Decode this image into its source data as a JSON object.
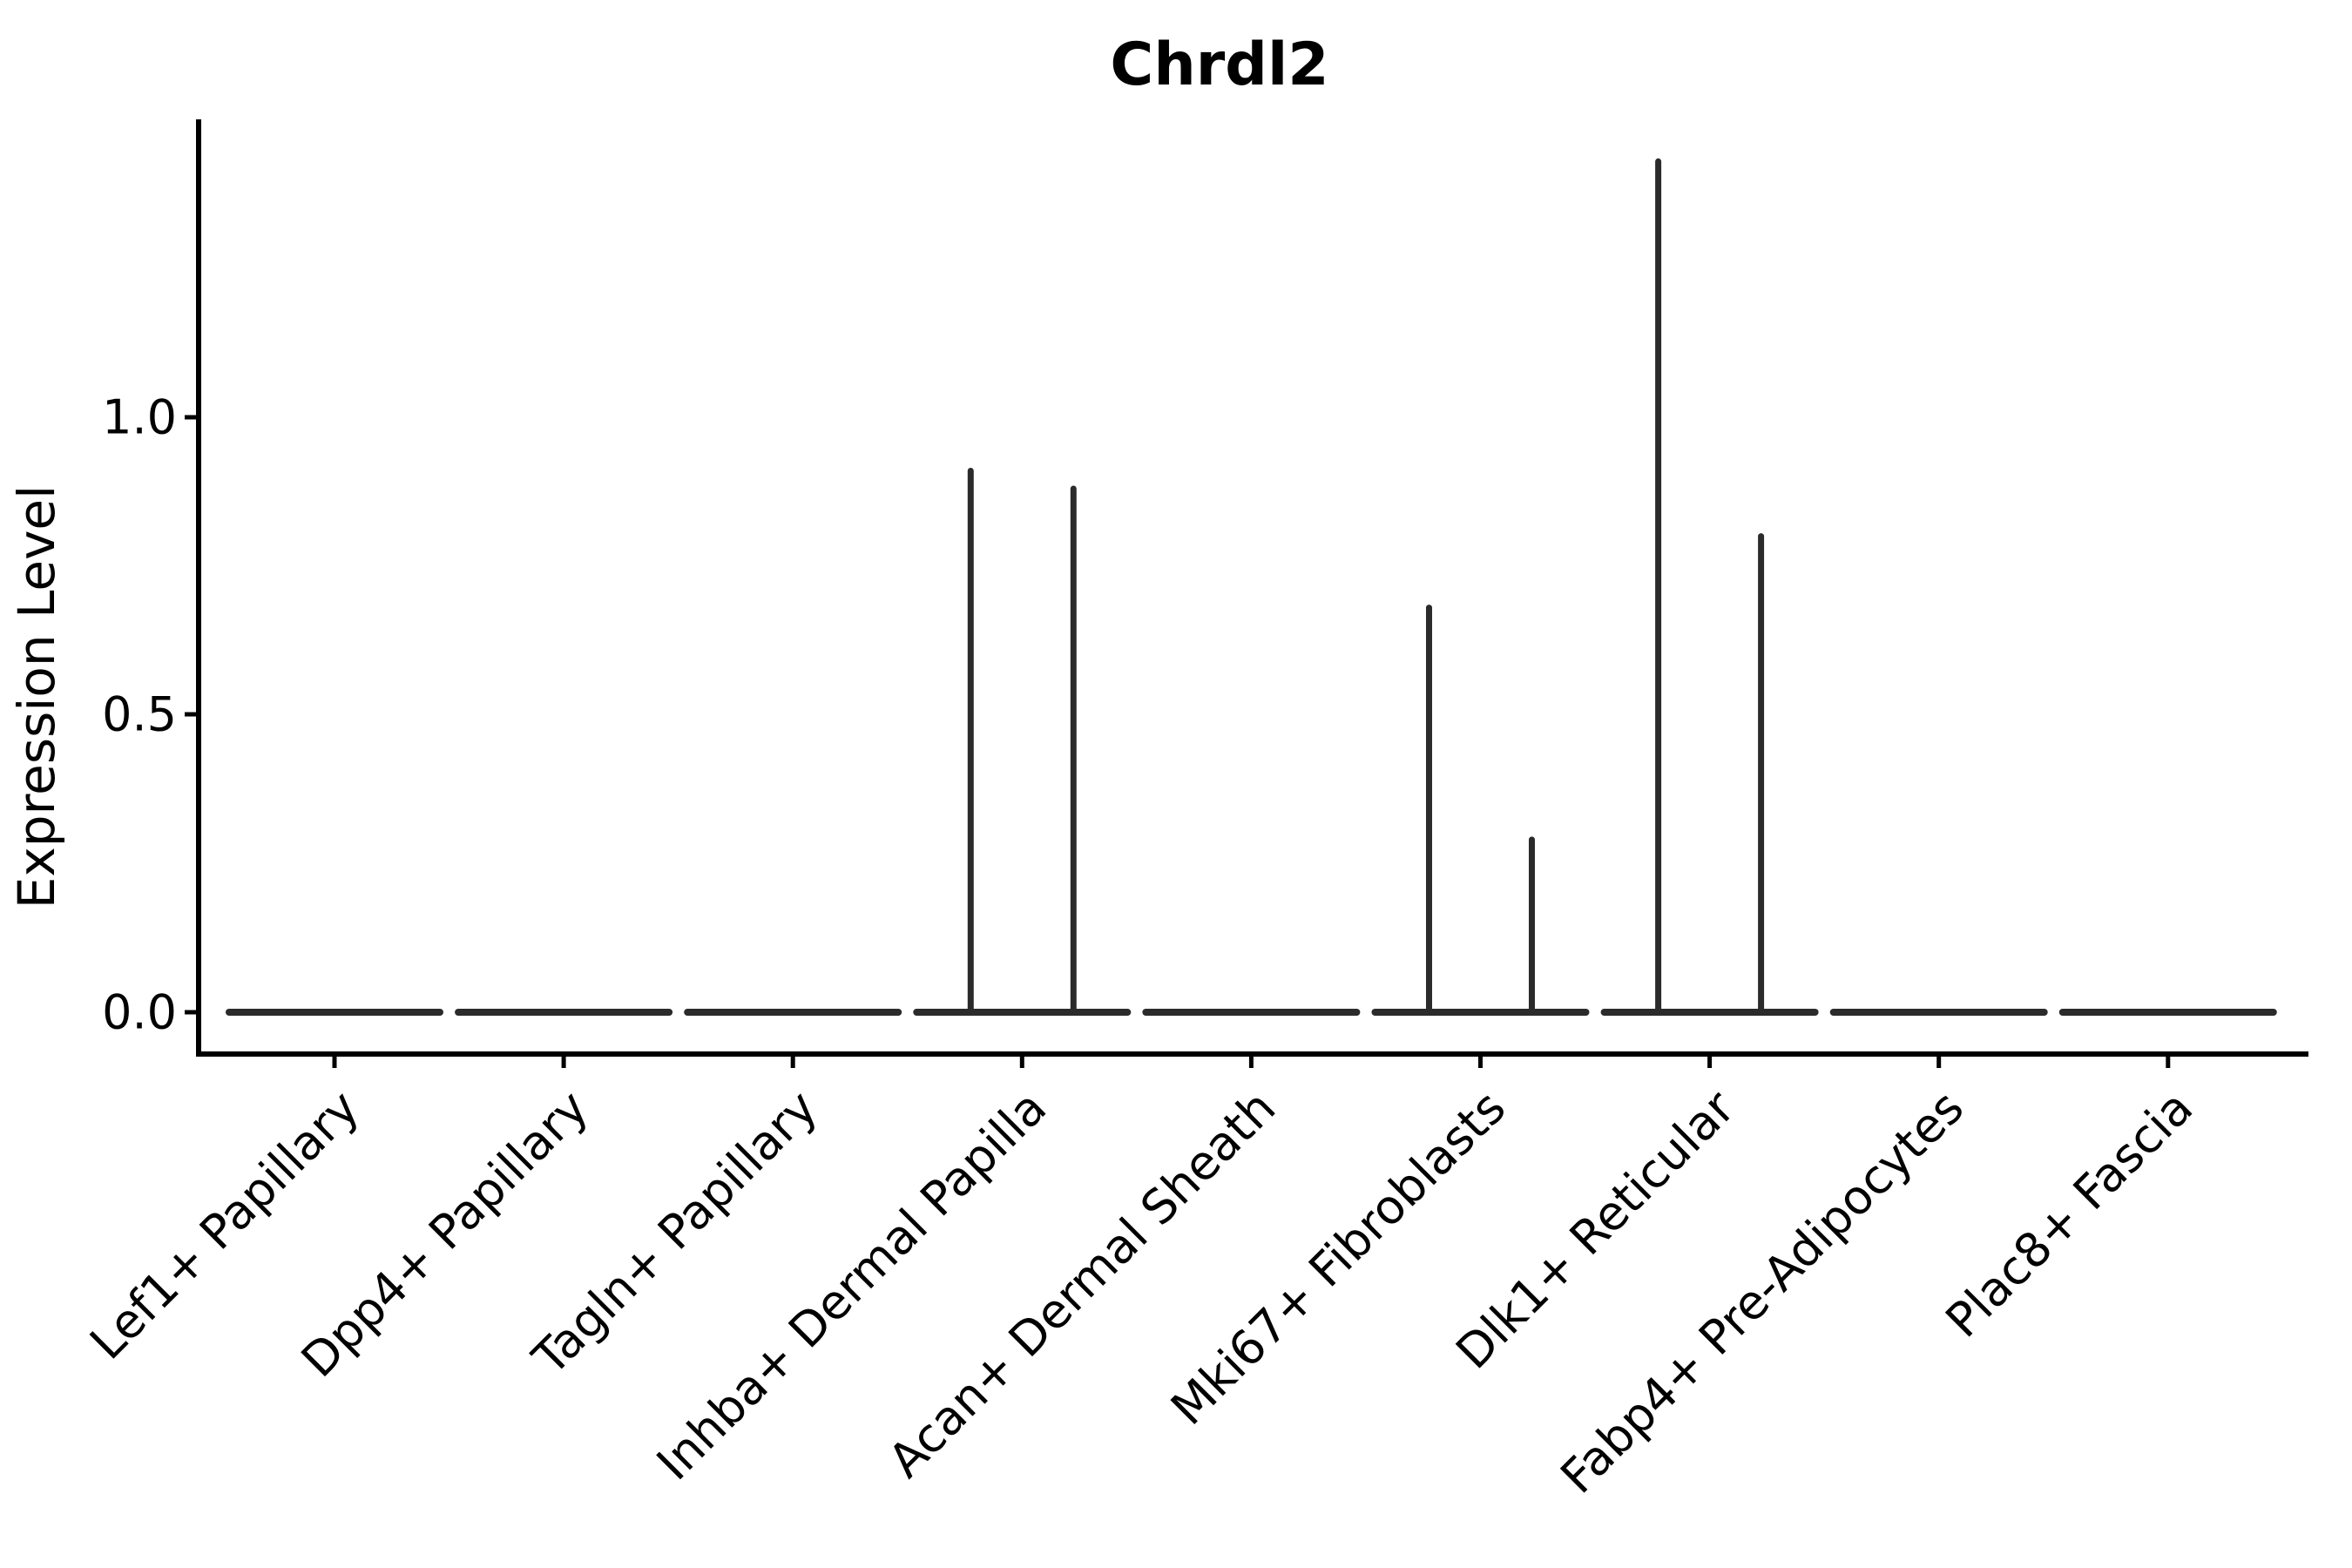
{
  "figure": {
    "background": "#ffffff"
  },
  "chart_data": {
    "type": "violin",
    "title": "Chrdl2",
    "ylabel": "Expression Level",
    "xlabel": "",
    "categories": [
      "Lef1+ Papillary",
      "Dpp4+ Papillary",
      "Tagln+ Papillary",
      "Inhba+ Dermal Papilla",
      "Acan+ Dermal Sheath",
      "Mki67+ Fibroblasts",
      "Dlk1+ Reticular",
      "Fabp4+ Pre-Adipocytes",
      "Plac8+ Fascia"
    ],
    "yticks": [
      0.0,
      0.5,
      1.0
    ],
    "ytick_labels": [
      "0.0",
      "0.5",
      "1.0"
    ],
    "ylim": [
      -0.07,
      1.5
    ],
    "x_tick_rotation_deg": 45,
    "grid": false,
    "legend": null,
    "violins": [
      {
        "category": "Lef1+ Papillary",
        "baseline": 0.0,
        "spikes": []
      },
      {
        "category": "Dpp4+ Papillary",
        "baseline": 0.0,
        "spikes": []
      },
      {
        "category": "Tagln+ Papillary",
        "baseline": 0.0,
        "spikes": []
      },
      {
        "category": "Inhba+ Dermal Papilla",
        "baseline": 0.0,
        "spikes": [
          {
            "side": "left",
            "max": 0.91
          },
          {
            "side": "right",
            "max": 0.88
          }
        ]
      },
      {
        "category": "Acan+ Dermal Sheath",
        "baseline": 0.0,
        "spikes": []
      },
      {
        "category": "Mki67+ Fibroblasts",
        "baseline": 0.0,
        "spikes": [
          {
            "side": "left",
            "max": 0.68
          },
          {
            "side": "right",
            "max": 0.29
          }
        ]
      },
      {
        "category": "Dlk1+ Reticular",
        "baseline": 0.0,
        "spikes": [
          {
            "side": "left",
            "max": 1.43
          },
          {
            "side": "right",
            "max": 0.8
          }
        ]
      },
      {
        "category": "Fabp4+ Pre-Adipocytes",
        "baseline": 0.0,
        "spikes": []
      },
      {
        "category": "Plac8+ Fascia",
        "baseline": 0.0,
        "spikes": []
      }
    ],
    "colors": {
      "violin_stroke": "#2b2b2b",
      "axis": "#000000",
      "text": "#000000"
    }
  }
}
